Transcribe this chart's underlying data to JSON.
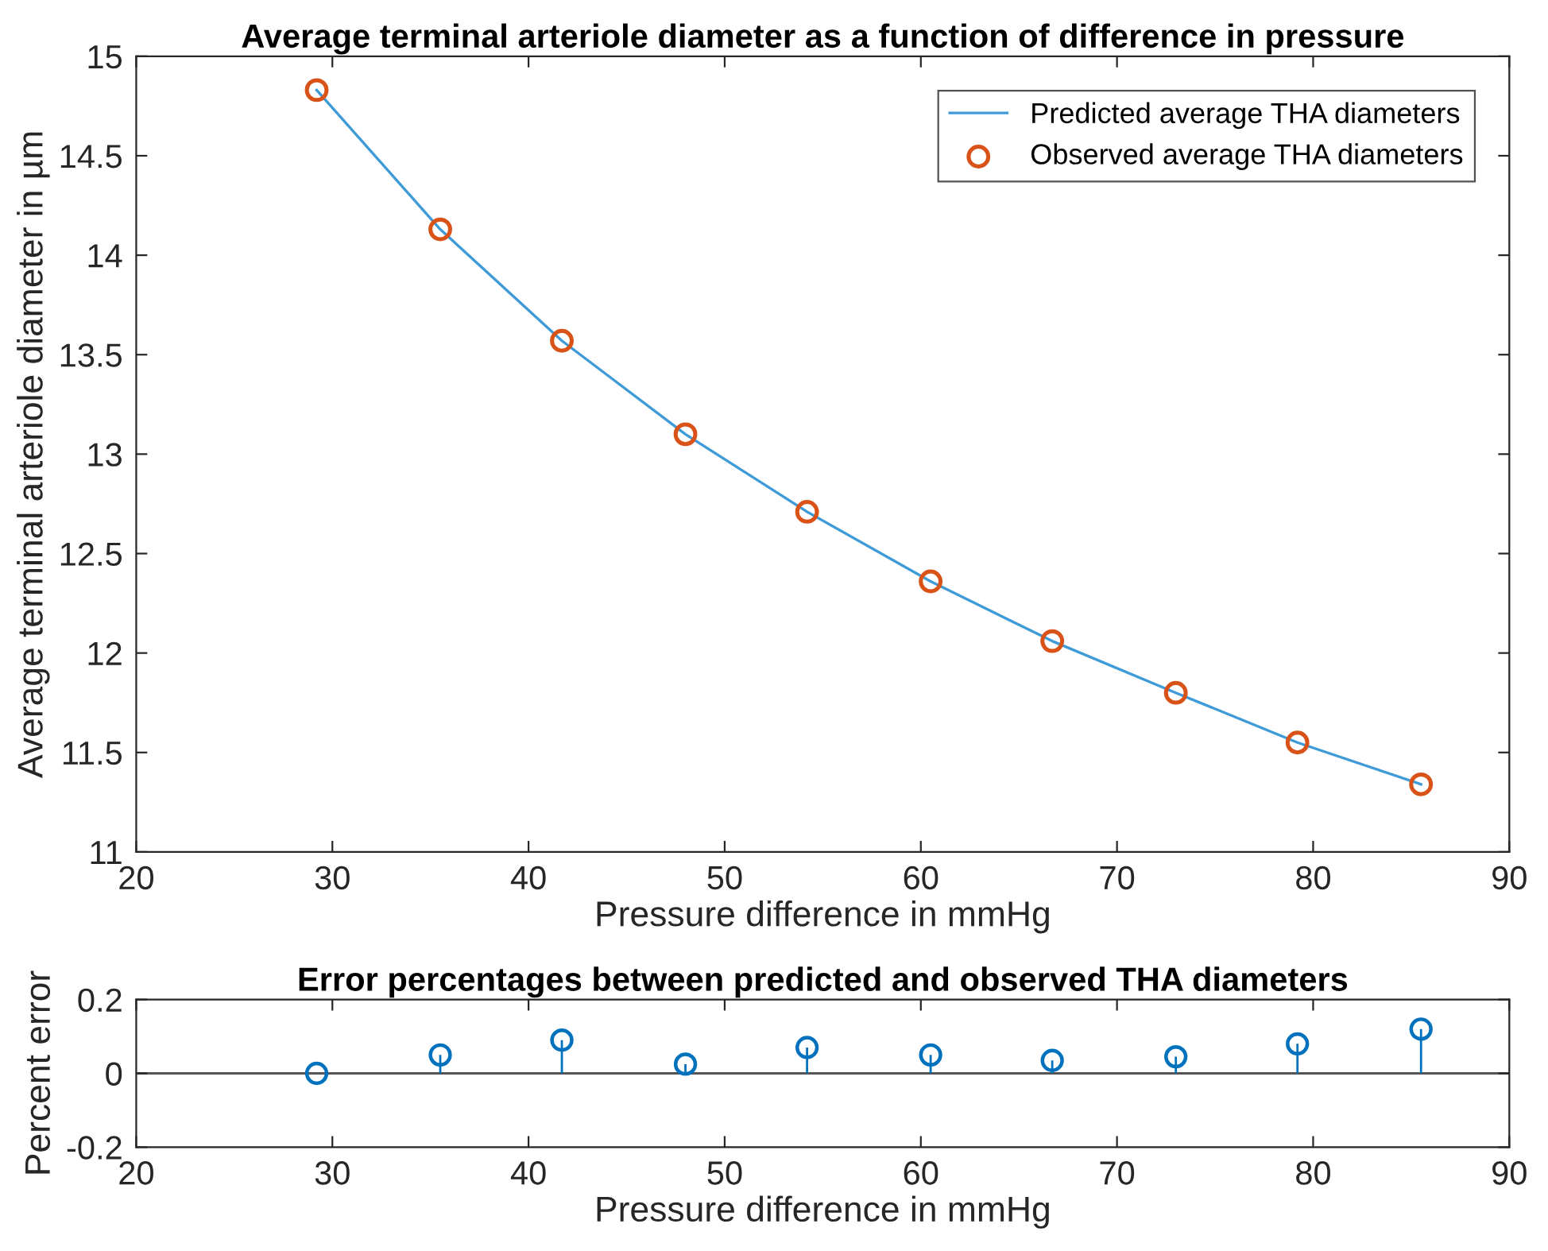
{
  "chart_data": [
    {
      "type": "line",
      "title": "Average terminal arteriole diameter as a function of difference in pressure",
      "xlabel": "Pressure difference in mmHg",
      "ylabel": "Average terminal arteriole diameter in µm",
      "xlim": [
        20,
        90
      ],
      "xticks": [
        20,
        30,
        40,
        50,
        60,
        70,
        80,
        90
      ],
      "ylim": [
        11,
        15
      ],
      "yticks": [
        11,
        11.5,
        12,
        12.5,
        13,
        13.5,
        14,
        14.5,
        15
      ],
      "grid": false,
      "legend": "top right",
      "series": [
        {
          "name": "Predicted average THA diameters",
          "type": "line",
          "color": "#3f9bd8",
          "marker": "none",
          "x": [
            29.2,
            35.5,
            41.7,
            48.0,
            54.2,
            60.5,
            66.7,
            73.0,
            79.2,
            85.5
          ],
          "values": [
            14.83,
            14.13,
            13.57,
            13.1,
            12.71,
            12.36,
            12.06,
            11.8,
            11.55,
            11.34
          ]
        },
        {
          "name": "Observed average THA diameters",
          "type": "scatter",
          "color": "#d95319",
          "marker": "circle",
          "x": [
            29.2,
            35.5,
            41.7,
            48.0,
            54.2,
            60.5,
            66.7,
            73.0,
            79.2,
            85.5
          ],
          "values": [
            14.83,
            14.13,
            13.57,
            13.1,
            12.71,
            12.36,
            12.06,
            11.8,
            11.55,
            11.34
          ]
        }
      ]
    },
    {
      "type": "lollipop",
      "title": "Error percentages between predicted and observed THA diameters",
      "xlabel": "Pressure difference in mmHg",
      "ylabel": "Percent error",
      "xlim": [
        20,
        90
      ],
      "xticks": [
        20,
        30,
        40,
        50,
        60,
        70,
        80,
        90
      ],
      "ylim": [
        -0.2,
        0.2
      ],
      "yticks": [
        -0.2,
        0,
        0.2
      ],
      "grid": false,
      "marker": "circle",
      "ref_lines": [
        {
          "axis": "y",
          "value": 0,
          "color": "#555555"
        }
      ],
      "series": [
        {
          "color": "#0072bd",
          "x": [
            29.2,
            35.5,
            41.7,
            48.0,
            54.2,
            60.5,
            66.7,
            73.0,
            79.2,
            85.5
          ],
          "values": [
            0,
            0.05,
            0.09,
            0.025,
            0.07,
            0.05,
            0.035,
            0.045,
            0.08,
            0.12
          ]
        }
      ]
    }
  ]
}
